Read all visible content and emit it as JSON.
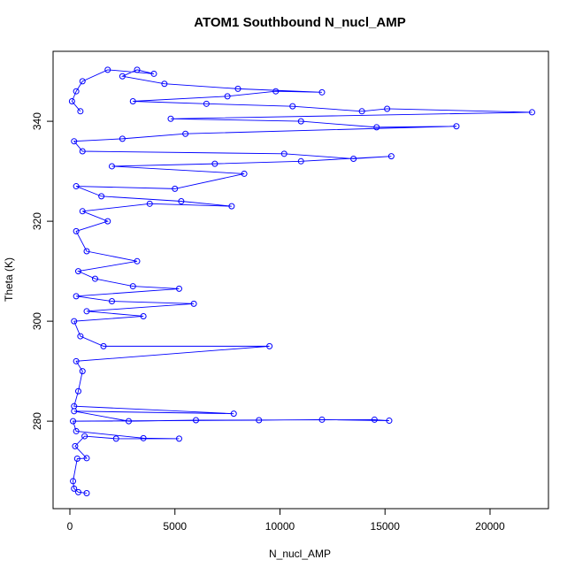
{
  "chart_data": {
    "type": "line",
    "title": "ATOM1 Southbound N_nucl_AMP",
    "x_label": "N_nucl_AMP",
    "y_label": "Theta (K)",
    "color": "#0000ff",
    "markers": true,
    "x": [
      800,
      400,
      200,
      150,
      350,
      800,
      250,
      700,
      2200,
      5200,
      3500,
      300,
      150,
      9000,
      12000,
      15200,
      14500,
      6000,
      2800,
      200,
      7800,
      200,
      400,
      600,
      300,
      9500,
      1600,
      500,
      200,
      3500,
      800,
      5900,
      2000,
      300,
      5200,
      3000,
      1200,
      400,
      3200,
      800,
      300,
      1800,
      600,
      3800,
      7700,
      5300,
      1500,
      300,
      5000,
      8300,
      2000,
      6900,
      11000,
      15300,
      13500,
      10200,
      600,
      200,
      2500,
      5500,
      18400,
      14600,
      11000,
      4800,
      22000,
      15100,
      13900,
      10600,
      6500,
      3000,
      7500,
      9800,
      12000,
      8000,
      4500,
      2500,
      3200,
      4000,
      1800,
      600,
      300,
      100,
      500
    ],
    "values": [
      265.6,
      265.8,
      266.5,
      268,
      272.5,
      272.6,
      275,
      277,
      276.5,
      276.5,
      276.6,
      278,
      280,
      280.2,
      280.3,
      280.1,
      280.3,
      280.2,
      280,
      282,
      281.5,
      283,
      286,
      290,
      292,
      295,
      295,
      297,
      300,
      301,
      302,
      303.5,
      304,
      305,
      306.5,
      307,
      308.5,
      310,
      312,
      314,
      318,
      320,
      322,
      323.5,
      323,
      324,
      325,
      327,
      326.5,
      329.5,
      331,
      331.5,
      332,
      333,
      332.5,
      333.5,
      334,
      336,
      336.5,
      337.5,
      339,
      338.8,
      340,
      340.5,
      341.8,
      342.5,
      342,
      343,
      343.5,
      344,
      345,
      346,
      345.8,
      346.5,
      347.5,
      349,
      350.3,
      349.5,
      350.3,
      348,
      346,
      344,
      342
    ],
    "xlim": [
      -800,
      22780
    ],
    "ylim": [
      262.5,
      354
    ],
    "xticks": [
      0,
      5000,
      10000,
      15000,
      20000
    ],
    "yticks": [
      280,
      300,
      320,
      340
    ],
    "grid": false
  }
}
